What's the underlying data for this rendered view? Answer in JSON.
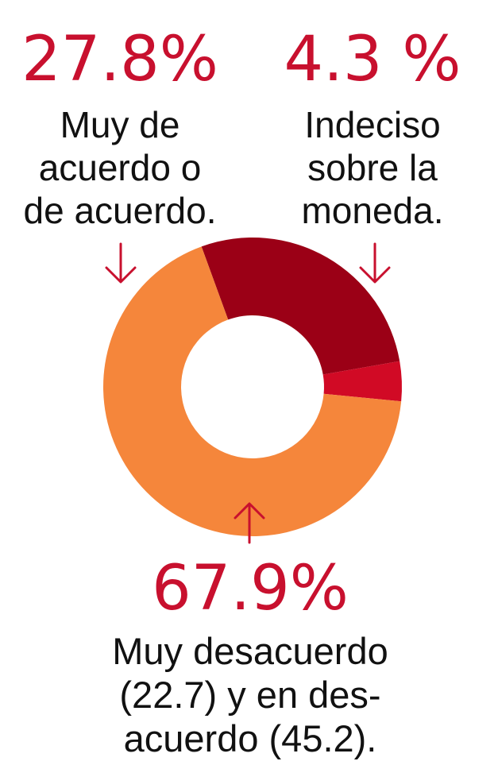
{
  "colors": {
    "accent": "#c8102e",
    "agree": "#9b0016",
    "undecided": "#d10a25",
    "disagree": "#f5863b",
    "text": "#111111"
  },
  "chart_data": {
    "type": "pie",
    "donut": true,
    "slices": [
      {
        "key": "agree",
        "value": 27.8,
        "value_label": "27.8%",
        "label_lines": [
          "Muy de",
          "acuerdo o",
          "de acuerdo."
        ],
        "color": "#9b0016"
      },
      {
        "key": "undecided",
        "value": 4.3,
        "value_label": "4.3 %",
        "label_lines": [
          "Indeciso",
          "sobre la",
          "moneda."
        ],
        "color": "#d10a25"
      },
      {
        "key": "disagree",
        "value": 67.9,
        "value_label": "67.9%",
        "label_lines": [
          "Muy desacuerdo",
          "(22.7) y en des-",
          "acuerdo (45.2)."
        ],
        "color": "#f5863b"
      }
    ]
  }
}
